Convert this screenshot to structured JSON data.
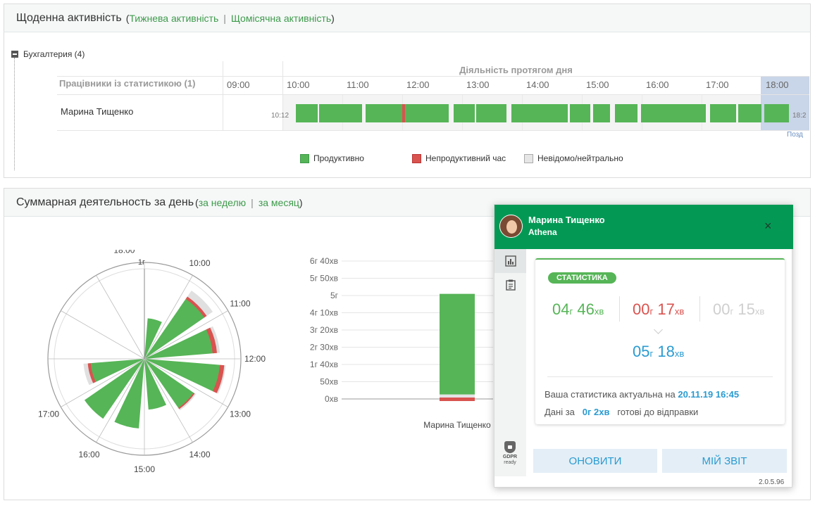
{
  "daily": {
    "title": "Щоденна активність",
    "weekly_link": "Тижнева активність",
    "separator": "|",
    "monthly_link": "Щомісячна активність",
    "group_label": "Бухгалтерия (4)",
    "employees_header": "Працівники із статистикою (1)",
    "day_activity_header": "Діяльність протягом дня",
    "hours": [
      "09:00",
      "10:00",
      "11:00",
      "12:00",
      "13:00",
      "14:00",
      "15:00",
      "16:00",
      "17:00",
      "18:00"
    ],
    "employee_name": "Марина Тищенко",
    "start_time": "10:12",
    "end_time": "18:2",
    "later_label": "Позд",
    "legend": [
      {
        "label": "Продуктивно",
        "color": "#56b557"
      },
      {
        "label": "Непродуктивний час",
        "color": "#d9534f"
      },
      {
        "label": "Невідомо/нейтрально",
        "color": "#e6e6e6"
      }
    ]
  },
  "summary": {
    "title": "Суммарная деятельность за день",
    "week_link": "за неделю",
    "separator": "|",
    "month_link": "за месяц",
    "radial_labels": [
      "10:00",
      "11:00",
      "12:00",
      "13:00",
      "14:00",
      "15:00",
      "16:00",
      "17:00",
      "18:00"
    ],
    "radial_center_label": "1г",
    "bar_axis_labels": [
      "6г 40хв",
      "5г 50хв",
      "5г",
      "4г 10хв",
      "3г 20хв",
      "2г 30хв",
      "1г 40хв",
      "50хв",
      "0хв"
    ],
    "bar_employee": "Марина Тищенко"
  },
  "chart_data": [
    {
      "type": "pie",
      "categories": [
        "10:00",
        "11:00",
        "12:00",
        "13:00",
        "14:00",
        "15:00",
        "16:00",
        "17:00",
        "18:00"
      ],
      "series": [
        {
          "values": [
            50,
            47,
            52,
            41,
            35,
            48,
            50,
            37,
            28
          ]
        },
        {
          "values": [
            2,
            3,
            3,
            1,
            0,
            0,
            0,
            2,
            0
          ]
        },
        {
          "values": [
            5,
            2,
            1,
            1,
            0,
            0,
            0,
            3,
            0
          ]
        }
      ],
      "ylim": [
        0,
        60
      ]
    },
    {
      "type": "bar",
      "categories": [
        "Марина Тищенко"
      ],
      "series": [
        {
          "values": [
            286
          ]
        },
        {
          "values": [
            17
          ]
        },
        {
          "values": [
            15
          ]
        }
      ],
      "ylim": [
        0,
        400
      ]
    }
  ],
  "popup": {
    "name": "Марина Тищенко",
    "company": "Athena",
    "close_glyph": "×",
    "badge": "СТАТИСТИКА",
    "productive": {
      "h": "04",
      "hu": "г",
      "m": "46",
      "mu": "хв"
    },
    "unproductive": {
      "h": "00",
      "hu": "г",
      "m": "17",
      "mu": "хв"
    },
    "neutral": {
      "h": "00",
      "hu": "г",
      "m": "15",
      "mu": "хв"
    },
    "total": {
      "h": "05",
      "hu": "г",
      "m": "18",
      "mu": "хв"
    },
    "actual_text": "Ваша статистика актуальна на",
    "actual_date": "20.11.19 16:45",
    "data_prefix": "Дані за",
    "data_value": "0г 2хв",
    "data_suffix": "готові до відправки",
    "gdpr_top": "GDPR",
    "gdpr_bottom": "ready",
    "refresh_button": "ОНОВИТИ",
    "report_button": "МІЙ ЗВІТ",
    "version": "2.0.5.96"
  }
}
